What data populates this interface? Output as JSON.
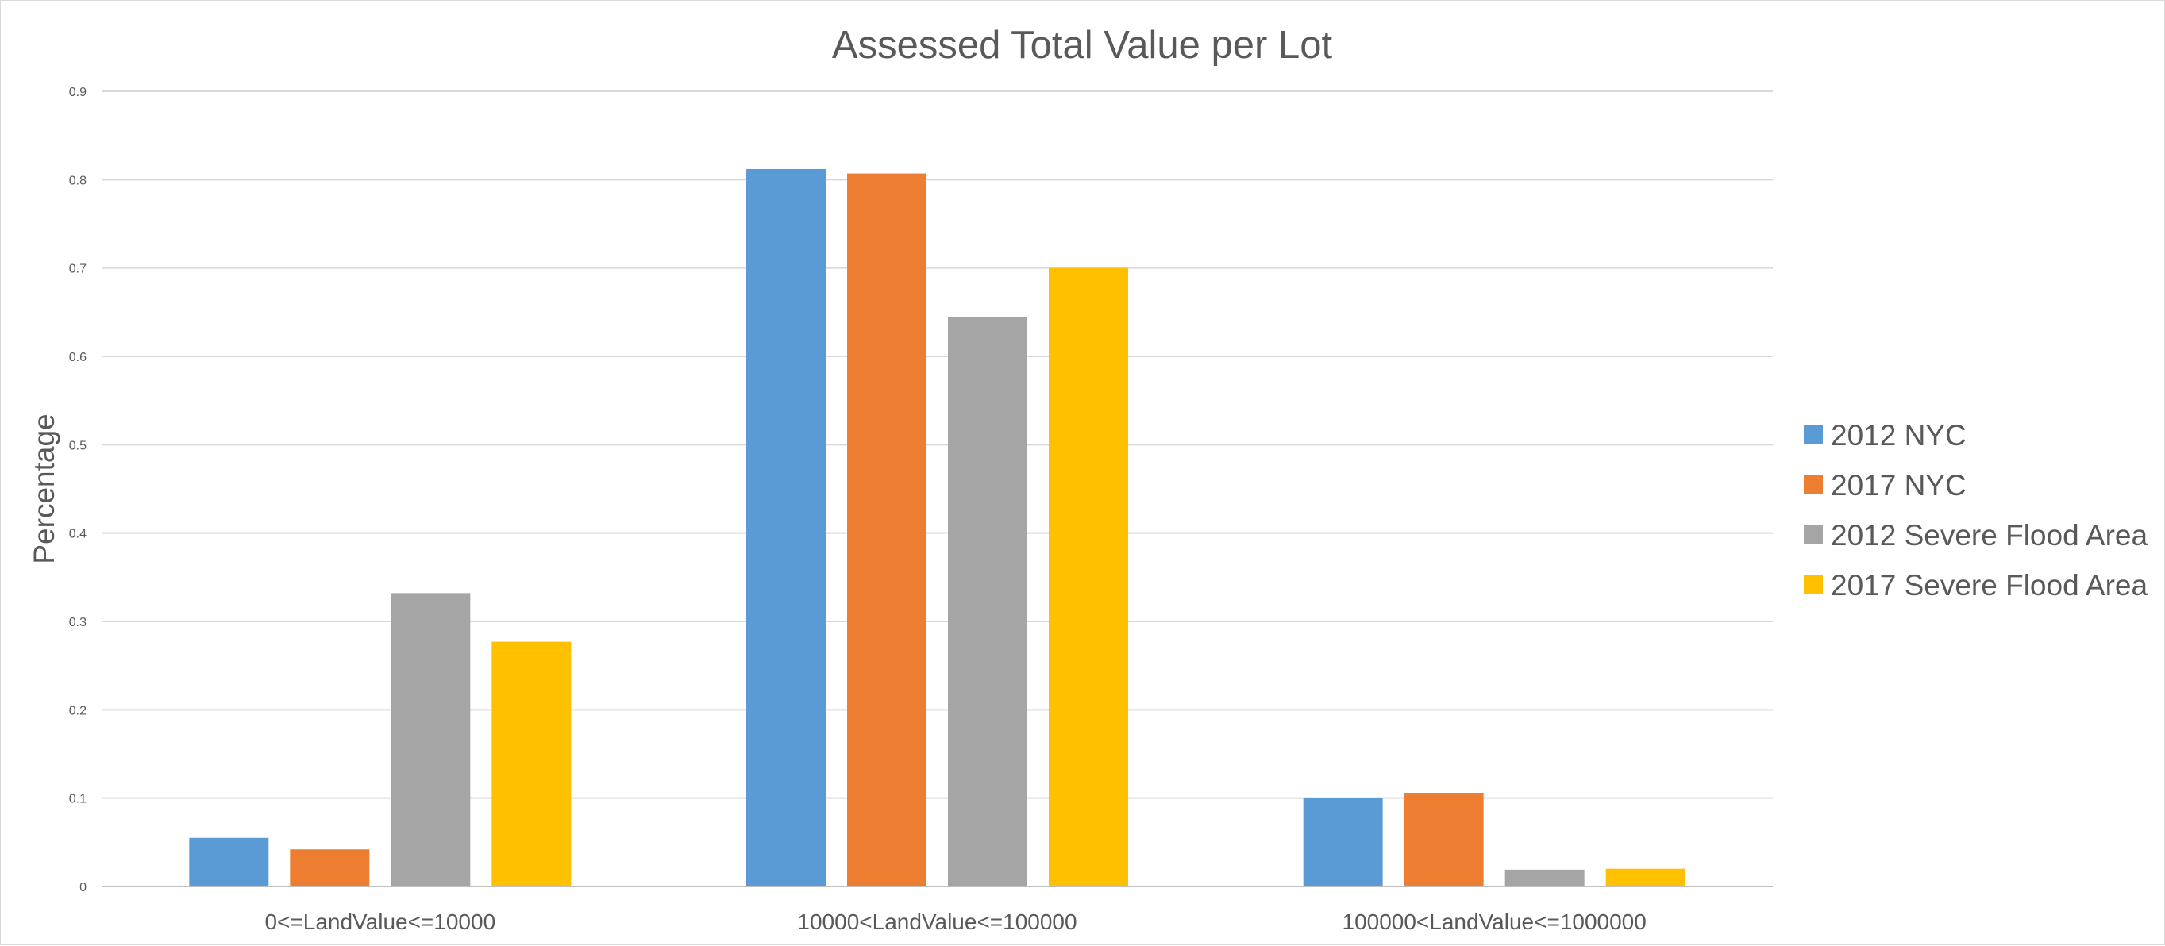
{
  "chart_data": {
    "type": "bar",
    "title": "Assessed Total Value per Lot",
    "xlabel": "",
    "ylabel": "Percentage",
    "ylim": [
      0,
      0.9
    ],
    "yticks": [
      "0",
      "0.1",
      "0.2",
      "0.3",
      "0.4",
      "0.5",
      "0.6",
      "0.7",
      "0.8",
      "0.9"
    ],
    "grid": true,
    "legend_position": "right",
    "categories": [
      "0<=LandValue<=10000",
      "10000<LandValue<=100000",
      "100000<LandValue<=1000000"
    ],
    "series": [
      {
        "name": "2012 NYC",
        "color": "#5B9BD5",
        "values": [
          0.055,
          0.812,
          0.1
        ]
      },
      {
        "name": "2017 NYC",
        "color": "#ED7D31",
        "values": [
          0.042,
          0.807,
          0.106
        ]
      },
      {
        "name": "2012 Severe Flood Area",
        "color": "#A5A5A5",
        "values": [
          0.332,
          0.644,
          0.019
        ]
      },
      {
        "name": "2017 Severe Flood Area",
        "color": "#FFC000",
        "values": [
          0.277,
          0.7,
          0.02
        ]
      }
    ]
  }
}
